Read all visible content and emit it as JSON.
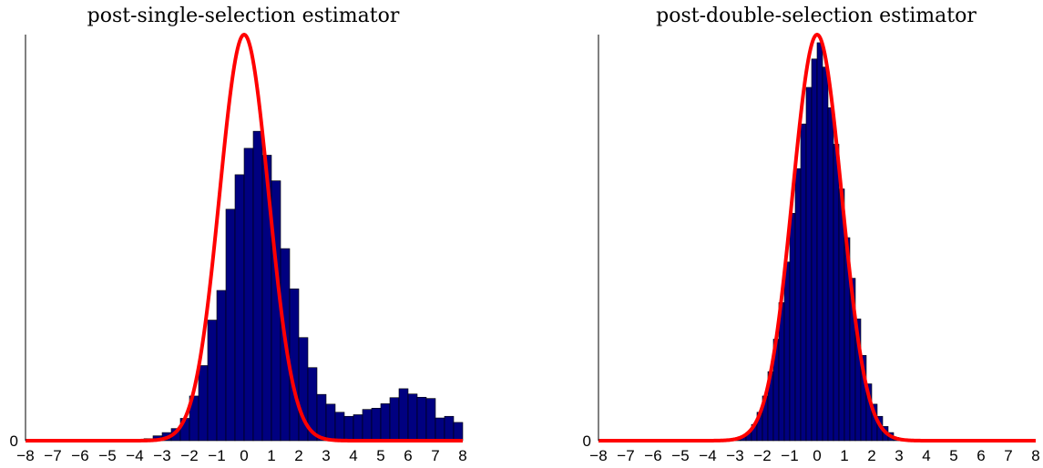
{
  "chart_data": [
    {
      "type": "bar",
      "title": "post-single-selection estimator",
      "xlabel": "",
      "ylabel": "",
      "xlim": [
        -8,
        8
      ],
      "ylim": [
        0,
        1
      ],
      "xticks": [
        "−8",
        "−7",
        "−6",
        "−5",
        "−4",
        "−3",
        "−2",
        "−1",
        "0",
        "1",
        "2",
        "3",
        "4",
        "5",
        "6",
        "7",
        "8"
      ],
      "yticks": [
        "0"
      ],
      "bin_width": 0.333,
      "histogram": {
        "bin_centers": [
          -3.5,
          -3.167,
          -2.833,
          -2.5,
          -2.167,
          -1.833,
          -1.5,
          -1.167,
          -0.833,
          -0.5,
          -0.167,
          0.167,
          0.5,
          0.833,
          1.167,
          1.5,
          1.833,
          2.167,
          2.5,
          2.833,
          3.167,
          3.5,
          3.833,
          4.167,
          4.5,
          4.833,
          5.167,
          5.5,
          5.833,
          6.167,
          6.5,
          6.833,
          7.167,
          7.5,
          7.833
        ],
        "values": [
          0.005,
          0.012,
          0.02,
          0.03,
          0.055,
          0.11,
          0.185,
          0.297,
          0.37,
          0.57,
          0.655,
          0.72,
          0.762,
          0.703,
          0.64,
          0.473,
          0.374,
          0.254,
          0.18,
          0.114,
          0.09,
          0.07,
          0.06,
          0.064,
          0.077,
          0.08,
          0.091,
          0.106,
          0.128,
          0.115,
          0.107,
          0.104,
          0.056,
          0.06,
          0.045
        ],
        "color": "#000080"
      },
      "curve": {
        "label": "",
        "mean": 0.0,
        "sd": 0.9,
        "color": "#ff0000"
      }
    },
    {
      "type": "bar",
      "title": "post-double-selection estimator",
      "xlabel": "",
      "ylabel": "",
      "xlim": [
        -8,
        8
      ],
      "ylim": [
        0,
        1
      ],
      "xticks": [
        "−8",
        "−7",
        "−6",
        "−5",
        "−4",
        "−3",
        "−2",
        "−1",
        "0",
        "1",
        "2",
        "3",
        "4",
        "5",
        "6",
        "7",
        "8"
      ],
      "yticks": [
        "0"
      ],
      "bin_width": 0.2,
      "histogram": {
        "bin_centers": [
          -2.9,
          -2.7,
          -2.5,
          -2.3,
          -2.1,
          -1.9,
          -1.7,
          -1.5,
          -1.3,
          -1.1,
          -0.9,
          -0.7,
          -0.5,
          -0.3,
          -0.1,
          0.1,
          0.3,
          0.5,
          0.7,
          0.9,
          1.1,
          1.3,
          1.5,
          1.7,
          1.9,
          2.1,
          2.3,
          2.5,
          2.7,
          2.9
        ],
        "values": [
          0.005,
          0.01,
          0.02,
          0.04,
          0.07,
          0.11,
          0.17,
          0.25,
          0.34,
          0.44,
          0.56,
          0.67,
          0.78,
          0.87,
          0.94,
          0.98,
          0.92,
          0.82,
          0.73,
          0.62,
          0.5,
          0.4,
          0.3,
          0.21,
          0.14,
          0.09,
          0.06,
          0.035,
          0.02,
          0.008
        ],
        "color": "#000080"
      },
      "curve": {
        "label": "",
        "mean": 0.0,
        "sd": 0.9,
        "color": "#ff0000"
      }
    }
  ]
}
